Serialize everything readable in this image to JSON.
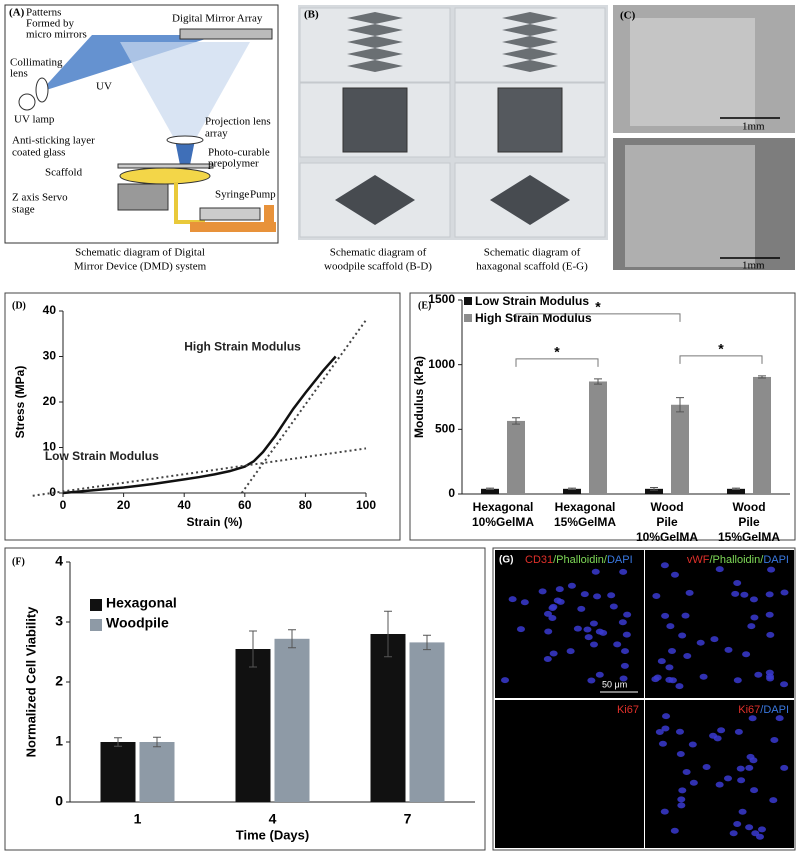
{
  "panel_a": {
    "label": "(A)",
    "texts": [
      [
        "Patterns",
        "Formed by",
        "micro mirrors"
      ],
      [
        "Digital Mirror Array"
      ],
      [
        "UV"
      ],
      [
        "Collimating",
        "lens"
      ],
      [
        "UV lamp"
      ],
      [
        "Projection lens",
        "array"
      ],
      [
        "Anti-sticking layer",
        "coated glass"
      ],
      [
        "Photo-curable",
        "prepolymer"
      ],
      [
        "Scaffold"
      ],
      [
        "Syringe"
      ],
      [
        "Pump"
      ],
      [
        "Z axis Servo",
        "stage"
      ]
    ],
    "caption": [
      "Schematic diagram of Digital",
      "Mirror Device (DMD) system"
    ]
  },
  "panel_b": {
    "label": "(B)",
    "captions": [
      [
        "Schematic diagram of",
        "woodpile scaffold (B-D)"
      ],
      [
        "Schematic diagram of",
        "haxagonal scaffold (E-G)"
      ]
    ]
  },
  "panel_c": {
    "label": "(C)",
    "scale_bars": [
      "1mm",
      "1mm"
    ]
  },
  "panel_g": {
    "label": "(G)",
    "tiles": [
      [
        {
          "text": "CD31",
          "color": "#e0302a"
        },
        {
          "text": "/Phalloidin/",
          "color": "#7ed957"
        },
        {
          "text": "DAPI",
          "color": "#3a78e0"
        }
      ],
      [
        {
          "text": "vWF",
          "color": "#e0302a"
        },
        {
          "text": "/Phalloidin/",
          "color": "#7ed957"
        },
        {
          "text": "DAPI",
          "color": "#3a78e0"
        }
      ],
      [
        {
          "text": "Ki67",
          "color": "#e0302a"
        }
      ],
      [
        {
          "text": "Ki67",
          "color": "#e0302a"
        },
        {
          "text": "/DAPI",
          "color": "#3a78e0"
        }
      ]
    ],
    "scale_bar": "50 μm"
  },
  "chart_data": [
    {
      "type": "line",
      "label": "(D)",
      "xlabel": "Strain (%)",
      "ylabel": "Stress (MPa)",
      "xlim": [
        0,
        100
      ],
      "xticks": [
        0,
        20,
        40,
        60,
        80,
        100
      ],
      "ylim": [
        0,
        40
      ],
      "yticks": [
        0,
        10,
        20,
        30,
        40
      ],
      "series": [
        {
          "color": "#111111",
          "style": "solid",
          "x": [
            0,
            5,
            10,
            15,
            20,
            25,
            30,
            35,
            40,
            45,
            50,
            55,
            60,
            63,
            66,
            70,
            73,
            76,
            80,
            83,
            86,
            88,
            90
          ],
          "values": [
            0,
            0.3,
            0.6,
            0.9,
            1.2,
            1.6,
            2,
            2.5,
            3,
            3.5,
            4.1,
            4.8,
            5.8,
            7,
            9,
            12.5,
            15.5,
            18.5,
            22,
            24.5,
            27,
            28.5,
            30
          ]
        },
        {
          "name": "Low Strain Modulus",
          "color": "#444444",
          "style": "dotted",
          "x": [
            -10,
            100
          ],
          "values": [
            -0.6,
            9.8
          ]
        },
        {
          "name": "High Strain Modulus",
          "color": "#444444",
          "style": "dotted",
          "x": [
            59,
            100
          ],
          "values": [
            0,
            38
          ]
        }
      ]
    },
    {
      "type": "bar",
      "label": "(E)",
      "ylabel": "Modulus (kPa)",
      "ylim": [
        0,
        1500
      ],
      "yticks": [
        0,
        500,
        1000,
        1500
      ],
      "legend": "upper left",
      "categories": [
        "Hexagonal 10%GelMA",
        "Hexagonal 15%GelMA",
        "Wood Pile 10%GelMA",
        "Wood Pile 15%GelMA"
      ],
      "series": [
        {
          "name": "Low Strain Modulus",
          "color": "#111111",
          "values": [
            40,
            40,
            40,
            40
          ],
          "errors": [
            5,
            5,
            10,
            5
          ]
        },
        {
          "name": "High Strain Modulus",
          "color": "#8c8c8c",
          "values": [
            565,
            870,
            690,
            905
          ],
          "errors": [
            25,
            20,
            55,
            8
          ]
        }
      ],
      "significance": [
        {
          "label": "*",
          "between": [
            0,
            1
          ]
        },
        {
          "label": "*",
          "between": [
            0,
            2
          ]
        },
        {
          "label": "*",
          "between": [
            2,
            3
          ]
        }
      ]
    },
    {
      "type": "bar",
      "label": "(F)",
      "xlabel": "Time (Days)",
      "ylabel": "Normalized Cell Viability",
      "ylim": [
        0,
        4
      ],
      "yticks": [
        0,
        1,
        2,
        3,
        4
      ],
      "legend": "upper left",
      "categories": [
        "1",
        "4",
        "7"
      ],
      "series": [
        {
          "name": "Hexagonal",
          "color": "#111111",
          "values": [
            1,
            2.55,
            2.8
          ],
          "errors": [
            0.07,
            0.3,
            0.38
          ]
        },
        {
          "name": "Woodpile",
          "color": "#8e9aa6",
          "values": [
            1,
            2.72,
            2.66
          ],
          "errors": [
            0.08,
            0.15,
            0.12
          ]
        }
      ]
    }
  ]
}
